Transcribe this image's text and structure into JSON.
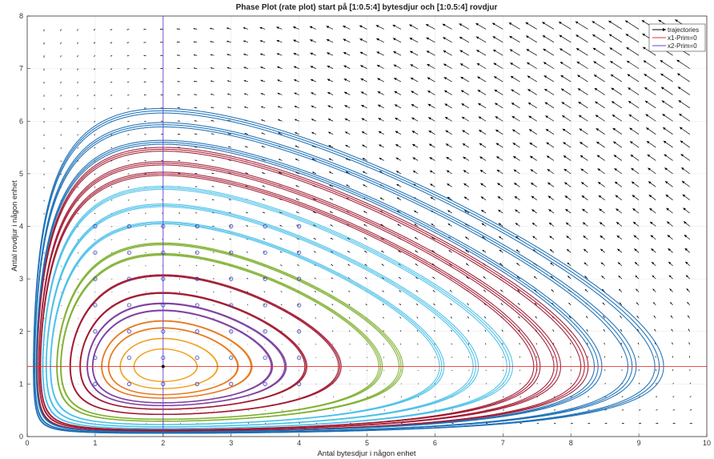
{
  "chart_data": {
    "type": "line",
    "title": "Phase Plot (rate plot) start på [1:0.5:4] bytesdjur och [1:0.5:4] rovdjur",
    "xlabel": "Antal bytesdjur i någon enhet",
    "ylabel": "Antal rovdjur i någon enhet",
    "xlim": [
      0,
      10
    ],
    "ylim": [
      0,
      8
    ],
    "xticks": [
      "0",
      "1",
      "2",
      "3",
      "4",
      "5",
      "6",
      "7",
      "8",
      "9",
      "10"
    ],
    "yticks": [
      "0",
      "1",
      "2",
      "3",
      "4",
      "5",
      "6",
      "7",
      "8"
    ],
    "grid": true,
    "legend_position": "top-right",
    "legend": [
      "trajectories",
      "x1-Prim=0",
      "x2-Prim=0"
    ],
    "colors": {
      "trajectories": "#000000",
      "x1_nullcline": "#e8322f",
      "x2_nullcline": "#6b3fd1",
      "orbit_palette": [
        "#f0a020",
        "#e8781e",
        "#7e3fa0",
        "#a01830",
        "#80b030",
        "#4ac0e8",
        "#1a6fb5"
      ]
    },
    "equilibrium": {
      "x": 2,
      "y": 1.333
    },
    "nullclines": [
      {
        "name": "x1-Prim=0",
        "type": "horizontal",
        "y": 1.333
      },
      {
        "name": "x2-Prim=0",
        "type": "vertical",
        "x": 2
      }
    ],
    "start_points": {
      "x": [
        1,
        1.5,
        2,
        2.5,
        3,
        3.5,
        4
      ],
      "y": [
        1,
        1.5,
        2,
        2.5,
        3,
        3.5,
        4
      ]
    },
    "orbit_extents": [
      {
        "x_max": 2.5,
        "color": "#f0a020"
      },
      {
        "x_max": 2.8,
        "color": "#f0a020"
      },
      {
        "x_max": 3.1,
        "color": "#e8781e"
      },
      {
        "x_max": 3.3,
        "color": "#e8781e"
      },
      {
        "x_max": 3.6,
        "color": "#7e3fa0"
      },
      {
        "x_max": 3.8,
        "color": "#7e3fa0"
      },
      {
        "x_max": 4.1,
        "color": "#a01830"
      },
      {
        "x_max": 4.6,
        "color": "#a01830"
      },
      {
        "x_max": 5.2,
        "color": "#80b030"
      },
      {
        "x_max": 5.5,
        "color": "#80b030"
      },
      {
        "x_max": 6.1,
        "color": "#4ac0e8"
      },
      {
        "x_max": 6.6,
        "color": "#4ac0e8"
      },
      {
        "x_max": 7.1,
        "color": "#4ac0e8"
      },
      {
        "x_max": 7.5,
        "color": "#a01830"
      },
      {
        "x_max": 7.8,
        "color": "#a01830"
      },
      {
        "x_max": 8.2,
        "color": "#a01830"
      },
      {
        "x_max": 8.4,
        "color": "#1a6fb5"
      },
      {
        "x_max": 8.9,
        "color": "#1a6fb5"
      },
      {
        "x_max": 9.3,
        "color": "#1a6fb5"
      }
    ]
  }
}
